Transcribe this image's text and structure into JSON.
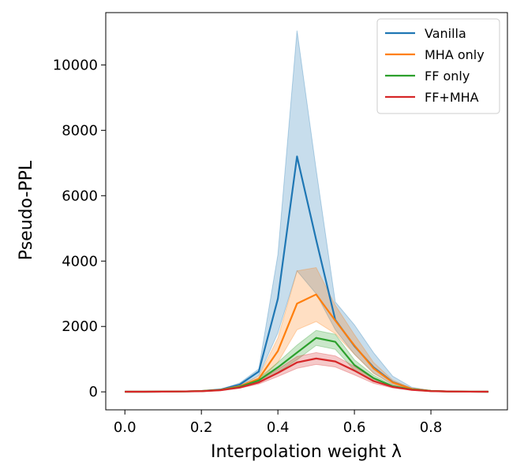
{
  "chart_data": {
    "type": "line",
    "xlabel": "Interpolation weight λ",
    "ylabel": "Pseudo-PPL",
    "xlim": [
      -0.05,
      1.0
    ],
    "ylim": [
      -550,
      11600
    ],
    "xticks": [
      0.0,
      0.2,
      0.4,
      0.6,
      0.8
    ],
    "xtick_labels": [
      "0.0",
      "0.2",
      "0.4",
      "0.6",
      "0.8"
    ],
    "yticks": [
      0,
      2000,
      4000,
      6000,
      8000,
      10000
    ],
    "ytick_labels": [
      "0",
      "2000",
      "4000",
      "6000",
      "8000",
      "10000"
    ],
    "grid": false,
    "legend_position": "top-right",
    "x": [
      0.0,
      0.05,
      0.1,
      0.15,
      0.2,
      0.25,
      0.3,
      0.35,
      0.4,
      0.45,
      0.5,
      0.55,
      0.6,
      0.65,
      0.7,
      0.75,
      0.8,
      0.85,
      0.9,
      0.95
    ],
    "series": [
      {
        "name": "Vanilla",
        "color": "#1f77b4",
        "values": [
          5,
          5,
          8,
          12,
          25,
          70,
          220,
          620,
          2850,
          7200,
          4650,
          2200,
          1400,
          750,
          300,
          90,
          30,
          12,
          6,
          5
        ],
        "lower": [
          5,
          5,
          8,
          12,
          22,
          60,
          170,
          500,
          1800,
          3700,
          3000,
          1900,
          1150,
          580,
          220,
          65,
          22,
          9,
          5,
          4
        ],
        "upper": [
          5,
          5,
          8,
          12,
          28,
          80,
          270,
          700,
          4200,
          11050,
          6800,
          2750,
          2050,
          1200,
          480,
          140,
          40,
          14,
          8,
          6
        ]
      },
      {
        "name": "MHA only",
        "color": "#ff7f0e",
        "values": [
          5,
          5,
          8,
          12,
          25,
          60,
          170,
          400,
          1250,
          2700,
          2980,
          2180,
          1420,
          720,
          290,
          90,
          28,
          10,
          6,
          5
        ],
        "lower": [
          5,
          5,
          8,
          12,
          22,
          52,
          140,
          320,
          900,
          1900,
          2150,
          1780,
          1150,
          560,
          230,
          70,
          22,
          8,
          5,
          4
        ],
        "upper": [
          5,
          5,
          8,
          12,
          28,
          68,
          200,
          470,
          1650,
          3700,
          3800,
          2650,
          1750,
          900,
          360,
          110,
          34,
          12,
          7,
          6
        ]
      },
      {
        "name": "FF only",
        "color": "#2ca02c",
        "values": [
          5,
          5,
          8,
          12,
          22,
          55,
          150,
          350,
          750,
          1200,
          1650,
          1530,
          820,
          420,
          170,
          70,
          25,
          10,
          6,
          5
        ],
        "lower": [
          5,
          5,
          8,
          12,
          20,
          48,
          125,
          290,
          600,
          980,
          1420,
          1300,
          660,
          330,
          140,
          55,
          20,
          8,
          5,
          4
        ],
        "upper": [
          5,
          5,
          8,
          12,
          25,
          62,
          175,
          410,
          900,
          1430,
          1880,
          1760,
          980,
          510,
          200,
          85,
          30,
          12,
          7,
          6
        ]
      },
      {
        "name": "FF+MHA",
        "color": "#d62728",
        "values": [
          5,
          5,
          8,
          12,
          20,
          50,
          130,
          290,
          580,
          900,
          1020,
          930,
          650,
          330,
          150,
          60,
          22,
          10,
          6,
          5
        ],
        "lower": [
          5,
          5,
          8,
          12,
          18,
          43,
          110,
          240,
          470,
          720,
          840,
          760,
          520,
          260,
          120,
          48,
          18,
          8,
          5,
          4
        ],
        "upper": [
          5,
          5,
          8,
          12,
          22,
          57,
          150,
          340,
          690,
          1080,
          1200,
          1100,
          780,
          400,
          180,
          72,
          26,
          12,
          7,
          6
        ]
      }
    ]
  }
}
